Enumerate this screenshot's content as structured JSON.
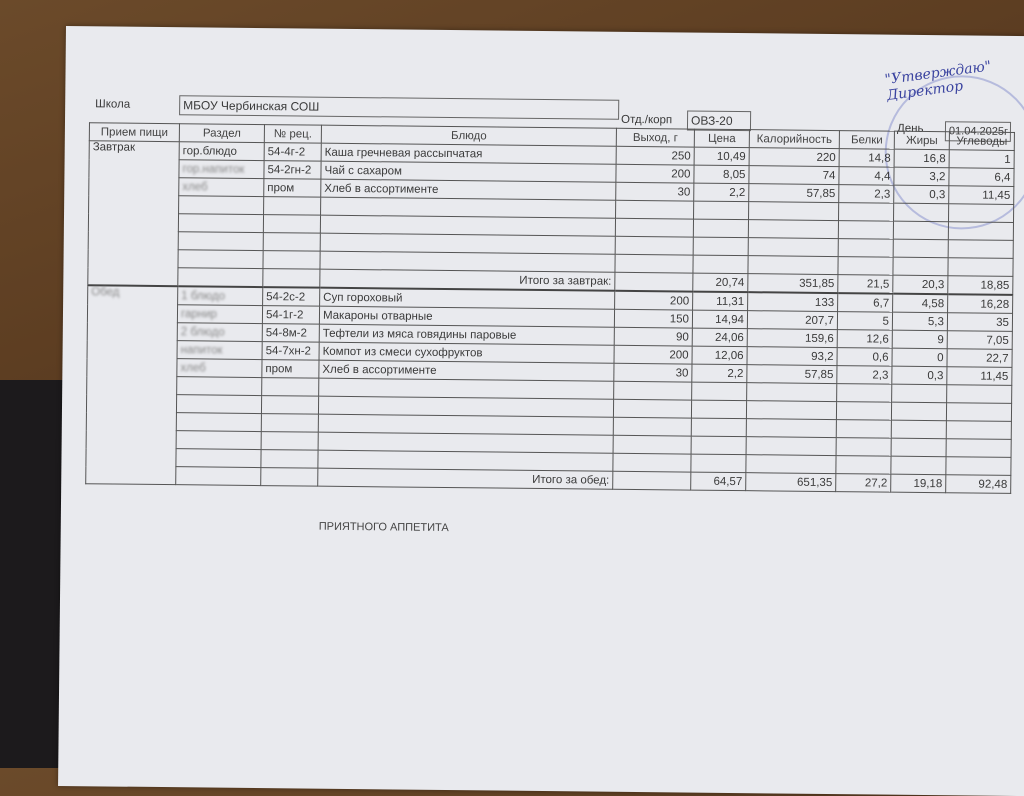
{
  "header": {
    "school_label": "Школа",
    "school_value": "МБОУ Чербинская СОШ",
    "dept_label": "Отд./корп",
    "dept_value": "ОВЗ-20",
    "day_label": "День",
    "day_value": "01.04.2025г"
  },
  "approval": {
    "line1": "\"Утверждаю\"",
    "line2": "Директор"
  },
  "columns": [
    "Прием пищи",
    "Раздел",
    "№ рец.",
    "Блюдо",
    "Выход, г",
    "Цена",
    "Калорийность",
    "Белки",
    "Жиры",
    "Углеводы"
  ],
  "breakfast": {
    "meal": "Завтрак",
    "rows": [
      {
        "section": "гор.блюдо",
        "recipe": "54-4г-2",
        "dish": "Каша гречневая рассыпчатая",
        "yield": "250",
        "price": "10,49",
        "kcal": "220",
        "protein": "14,8",
        "fat": "16,8",
        "carbs": "1"
      },
      {
        "section": "гор.напиток",
        "recipe": "54-2гн-2",
        "dish": "Чай с сахаром",
        "yield": "200",
        "price": "8,05",
        "kcal": "74",
        "protein": "4,4",
        "fat": "3,2",
        "carbs": "6,4"
      },
      {
        "section": "хлеб",
        "recipe": "пром",
        "dish": "Хлеб в ассортименте",
        "yield": "30",
        "price": "2,2",
        "kcal": "57,85",
        "protein": "2,3",
        "fat": "0,3",
        "carbs": "11,45"
      }
    ],
    "total_label": "Итого за завтрак:",
    "total": {
      "price": "20,74",
      "kcal": "351,85",
      "protein": "21,5",
      "fat": "20,3",
      "carbs": "18,85"
    }
  },
  "lunch": {
    "meal": "Обед",
    "rows": [
      {
        "section": "1 блюдо",
        "recipe": "54-2с-2",
        "dish": "Суп гороховый",
        "yield": "200",
        "price": "11,31",
        "kcal": "133",
        "protein": "6,7",
        "fat": "4,58",
        "carbs": "16,28"
      },
      {
        "section": "гарнир",
        "recipe": "54-1г-2",
        "dish": "Макароны отварные",
        "yield": "150",
        "price": "14,94",
        "kcal": "207,7",
        "protein": "5",
        "fat": "5,3",
        "carbs": "35"
      },
      {
        "section": "2 блюдо",
        "recipe": "54-8м-2",
        "dish": "Тефтели из мяса говядины паровые",
        "yield": "90",
        "price": "24,06",
        "kcal": "159,6",
        "protein": "12,6",
        "fat": "9",
        "carbs": "7,05"
      },
      {
        "section": "напиток",
        "recipe": "54-7хн-2",
        "dish": "Компот из смеси сухофруктов",
        "yield": "200",
        "price": "12,06",
        "kcal": "93,2",
        "protein": "0,6",
        "fat": "0",
        "carbs": "22,7"
      },
      {
        "section": "хлеб",
        "recipe": "пром",
        "dish": "Хлеб в ассортименте",
        "yield": "30",
        "price": "2,2",
        "kcal": "57,85",
        "protein": "2,3",
        "fat": "0,3",
        "carbs": "11,45"
      }
    ],
    "total_label": "Итого за обед:",
    "total": {
      "price": "64,57",
      "kcal": "651,35",
      "protein": "27,2",
      "fat": "19,18",
      "carbs": "92,48"
    }
  },
  "footer": "ПРИЯТНОГО АППЕТИТА"
}
